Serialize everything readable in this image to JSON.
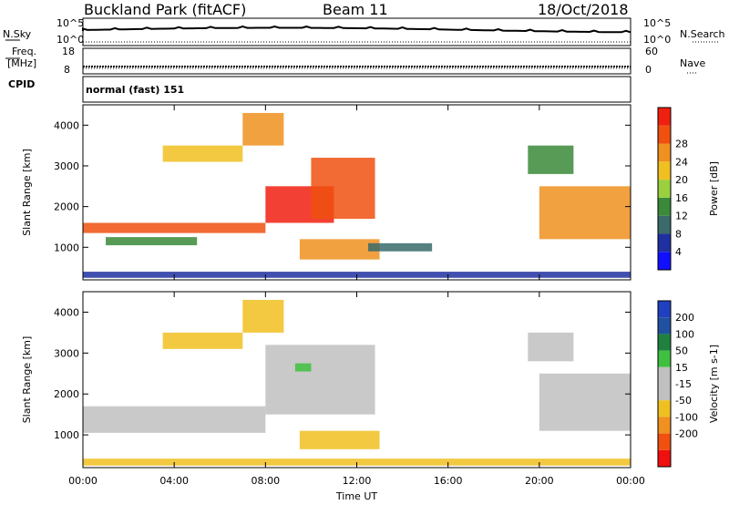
{
  "header": {
    "title": "Buckland Park (fitACF)",
    "beam": "Beam 11",
    "date": "18/Oct/2018"
  },
  "strips": {
    "sky_label": "N.Sky",
    "search_label": "N.Search",
    "sky_ticks": [
      "10^5",
      "10^0"
    ],
    "search_ticks": [
      "10^5",
      "10^0"
    ],
    "freq_label_1": "Freq.",
    "freq_label_2": "[MHz]",
    "freq_ticks": [
      "18",
      "8"
    ],
    "nave_label": "Nave",
    "nave_ticks": [
      "60",
      "0"
    ],
    "cpid_label": "CPID",
    "cpid_value": "normal (fast) 151"
  },
  "colors": {
    "power_scale": [
      "#1010ff",
      "#2030a0",
      "#3a6a6a",
      "#3a8a3a",
      "#9ad040",
      "#f0c020",
      "#f09020",
      "#f05010",
      "#f02010"
    ],
    "velocity_scale": [
      "#2040c0",
      "#2050a0",
      "#208040",
      "#40c040",
      "#c0c0c0",
      "#c0c0c0",
      "#f0c020",
      "#f09020",
      "#f05010",
      "#f01010"
    ]
  },
  "chart_data": [
    {
      "type": "heatmap",
      "name": "power",
      "ylabel": "Slant Range [km]",
      "xlabel": "",
      "x_ticks": [
        "00:00",
        "04:00",
        "08:00",
        "12:00",
        "16:00",
        "20:00",
        "00:00"
      ],
      "y_ticks": [
        1000,
        2000,
        3000,
        4000
      ],
      "ylim": [
        200,
        4500
      ],
      "colorbar_label": "Power [dB]",
      "colorbar_ticks": [
        4,
        8,
        12,
        16,
        20,
        24,
        28
      ],
      "echo_bands": [
        {
          "t0": 0.0,
          "t1": 8.0,
          "r0": 1350,
          "r1": 1600,
          "dB": 26
        },
        {
          "t0": 1.0,
          "t1": 5.0,
          "r0": 1050,
          "r1": 1250,
          "dB": 14
        },
        {
          "t0": 8.0,
          "t1": 11.0,
          "r0": 1600,
          "r1": 2500,
          "dB": 28
        },
        {
          "t0": 10.0,
          "t1": 12.8,
          "r0": 1700,
          "r1": 3200,
          "dB": 26
        },
        {
          "t0": 3.5,
          "t1": 7.0,
          "r0": 3100,
          "r1": 3500,
          "dB": 18
        },
        {
          "t0": 7.0,
          "t1": 8.8,
          "r0": 3500,
          "r1": 4300,
          "dB": 22
        },
        {
          "t0": 9.5,
          "t1": 13.0,
          "r0": 700,
          "r1": 1200,
          "dB": 24
        },
        {
          "t0": 12.5,
          "t1": 15.3,
          "r0": 900,
          "r1": 1100,
          "dB": 10
        },
        {
          "t0": 20.0,
          "t1": 24.0,
          "r0": 1200,
          "r1": 2500,
          "dB": 22
        },
        {
          "t0": 19.5,
          "t1": 21.5,
          "r0": 2800,
          "r1": 3500,
          "dB": 14
        },
        {
          "t0": 0.0,
          "t1": 24.0,
          "r0": 250,
          "r1": 400,
          "dB": 8
        }
      ]
    },
    {
      "type": "heatmap",
      "name": "velocity",
      "ylabel": "Slant Range [km]",
      "xlabel": "Time UT",
      "x_ticks": [
        "00:00",
        "04:00",
        "08:00",
        "12:00",
        "16:00",
        "20:00",
        "00:00"
      ],
      "y_ticks": [
        1000,
        2000,
        3000,
        4000
      ],
      "ylim": [
        200,
        4500
      ],
      "colorbar_label": "Velocity [m s-1]",
      "colorbar_ticks": [
        200,
        100,
        50,
        15,
        -15,
        -50,
        -100,
        -200
      ],
      "echo_bands": [
        {
          "t0": 0.0,
          "t1": 8.0,
          "r0": 1050,
          "r1": 1700,
          "v": 0
        },
        {
          "t0": 8.0,
          "t1": 12.8,
          "r0": 1500,
          "r1": 3200,
          "v": 0
        },
        {
          "t0": 3.5,
          "t1": 7.0,
          "r0": 3100,
          "r1": 3500,
          "v": -30
        },
        {
          "t0": 7.0,
          "t1": 8.8,
          "r0": 3500,
          "r1": 4300,
          "v": -40
        },
        {
          "t0": 9.5,
          "t1": 13.0,
          "r0": 650,
          "r1": 1100,
          "v": -40
        },
        {
          "t0": 9.3,
          "t1": 10.0,
          "r0": 2550,
          "r1": 2750,
          "v": 40
        },
        {
          "t0": 20.0,
          "t1": 24.0,
          "r0": 1100,
          "r1": 2500,
          "v": 0
        },
        {
          "t0": 19.5,
          "t1": 21.5,
          "r0": 2800,
          "r1": 3500,
          "v": 0
        },
        {
          "t0": 0.0,
          "t1": 24.0,
          "r0": 250,
          "r1": 420,
          "v": -40
        }
      ]
    }
  ]
}
